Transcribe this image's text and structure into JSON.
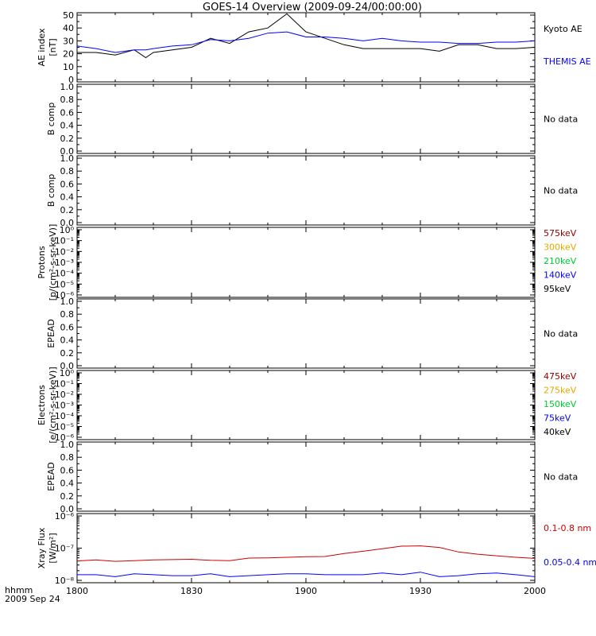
{
  "title": "GOES-14 Overview (2009-09-24/00:00:00)",
  "footer": {
    "time_label": "hhmm",
    "date_label": "2009 Sep 24"
  },
  "colors": {
    "black": "#000000",
    "blue": "#0000ff",
    "red": "#cc0000",
    "darkred": "#8b0000",
    "orange": "#e6a800",
    "green": "#00cc33"
  },
  "chart_data": [
    {
      "type": "line",
      "panel": "ae",
      "ylabel": [
        "AE index",
        "[nT]"
      ],
      "ylim": [
        0,
        50
      ],
      "yticks": [
        "0",
        "10",
        "20",
        "30",
        "40",
        "50"
      ],
      "minor_ticks": [
        5,
        15,
        25,
        35,
        45
      ],
      "x": [
        "1800",
        "1805",
        "1810",
        "1815",
        "1818",
        "1820",
        "1825",
        "1830",
        "1835",
        "1840",
        "1845",
        "1850",
        "1855",
        "1900",
        "1905",
        "1910",
        "1915",
        "1920",
        "1925",
        "1930",
        "1935",
        "1940",
        "1945",
        "1950",
        "1955",
        "2000"
      ],
      "series": [
        {
          "name": "Kyoto AE",
          "color": "#000000",
          "values": [
            21,
            21,
            19,
            23,
            17,
            21,
            23,
            25,
            32,
            28,
            37,
            40,
            51,
            37,
            32,
            27,
            24,
            24,
            24,
            24,
            22,
            27,
            27,
            24,
            24,
            25
          ]
        },
        {
          "name": "THEMIS AE",
          "color": "#0000ff",
          "values": [
            26,
            24,
            21,
            23,
            23,
            24,
            26,
            27,
            31,
            30,
            32,
            36,
            37,
            33,
            33,
            32,
            30,
            32,
            30,
            29,
            29,
            28,
            28,
            29,
            29,
            30
          ]
        }
      ]
    },
    {
      "type": "line",
      "panel": "bcomp1",
      "ylabel": [
        "B comp"
      ],
      "ylim": [
        0,
        1
      ],
      "yticks": [
        "0.0",
        "0.2",
        "0.4",
        "0.6",
        "0.8",
        "1.0"
      ],
      "minor_ticks": [
        0.1,
        0.3,
        0.5,
        0.7,
        0.9
      ],
      "status": "No data"
    },
    {
      "type": "line",
      "panel": "bcomp2",
      "ylabel": [
        "B comp"
      ],
      "ylim": [
        0,
        1
      ],
      "yticks": [
        "0.0",
        "0.2",
        "0.4",
        "0.6",
        "0.8",
        "1.0"
      ],
      "minor_ticks": [
        0.1,
        0.3,
        0.5,
        0.7,
        0.9
      ],
      "status": "No data"
    },
    {
      "type": "line",
      "panel": "protons",
      "ylabel": [
        "Protons",
        "[p/(cm²-s-sr-keV)]"
      ],
      "log": true,
      "yticks": [
        "10⁰",
        "10⁻¹",
        "10⁻²",
        "10⁻³",
        "10⁻⁴",
        "10⁻⁵",
        "10⁻⁶"
      ],
      "legend": [
        {
          "label": "575keV",
          "color": "#8b0000"
        },
        {
          "label": "300keV",
          "color": "#e6a800"
        },
        {
          "label": "210keV",
          "color": "#00cc33"
        },
        {
          "label": "140keV",
          "color": "#0000ff"
        },
        {
          "label": "95keV",
          "color": "#000000"
        }
      ]
    },
    {
      "type": "line",
      "panel": "epead1",
      "ylabel": [
        "EPEAD"
      ],
      "ylim": [
        0,
        1
      ],
      "yticks": [
        "0.0",
        "0.2",
        "0.4",
        "0.6",
        "0.8",
        "1.0"
      ],
      "minor_ticks": [
        0.1,
        0.3,
        0.5,
        0.7,
        0.9
      ],
      "status": "No data"
    },
    {
      "type": "line",
      "panel": "electrons",
      "ylabel": [
        "Electrons",
        "[e/(cm²-s-sr-keV)]"
      ],
      "log": true,
      "yticks": [
        "10⁰",
        "10⁻¹",
        "10⁻²",
        "10⁻³",
        "10⁻⁴",
        "10⁻⁵",
        "10⁻⁶"
      ],
      "legend": [
        {
          "label": "475keV",
          "color": "#8b0000"
        },
        {
          "label": "275keV",
          "color": "#e6a800"
        },
        {
          "label": "150keV",
          "color": "#00cc33"
        },
        {
          "label": "75keV",
          "color": "#0000ff"
        },
        {
          "label": "40keV",
          "color": "#000000"
        }
      ]
    },
    {
      "type": "line",
      "panel": "epead2",
      "ylabel": [
        "EPEAD"
      ],
      "ylim": [
        0,
        1
      ],
      "yticks": [
        "0.0",
        "0.2",
        "0.4",
        "0.6",
        "0.8",
        "1.0"
      ],
      "minor_ticks": [
        0.1,
        0.3,
        0.5,
        0.7,
        0.9
      ],
      "status": "No data"
    },
    {
      "type": "line",
      "panel": "xray",
      "ylabel": [
        "Xray Flux",
        "[W/m²]"
      ],
      "log": true,
      "ylim": [
        1e-08,
        1e-06
      ],
      "yticks": [
        "10⁻⁶",
        "10⁻⁷",
        "10⁻⁸"
      ],
      "xticks": [
        "1800",
        "1830",
        "1900",
        "1930",
        "2000"
      ],
      "x": [
        "1800",
        "1805",
        "1810",
        "1815",
        "1820",
        "1825",
        "1830",
        "1835",
        "1840",
        "1845",
        "1850",
        "1855",
        "1900",
        "1905",
        "1910",
        "1915",
        "1920",
        "1925",
        "1930",
        "1935",
        "1940",
        "1945",
        "1950",
        "1955",
        "2000"
      ],
      "series": [
        {
          "name": "0.1-0.8 nm",
          "color": "#cc0000",
          "values": [
            4e-08,
            4.3e-08,
            3.9e-08,
            4.1e-08,
            4.3e-08,
            4.4e-08,
            4.5e-08,
            4.2e-08,
            4.1e-08,
            4.9e-08,
            5e-08,
            5.2e-08,
            5.4e-08,
            5.5e-08,
            6.8e-08,
            8e-08,
            9.6e-08,
            1.15e-07,
            1.18e-07,
            1.05e-07,
            7.6e-08,
            6.5e-08,
            5.8e-08,
            5.2e-08,
            4.8e-08
          ]
        },
        {
          "name": "0.05-0.4 nm",
          "color": "#0000ff",
          "values": [
            1.5e-08,
            1.5e-08,
            1.3e-08,
            1.6e-08,
            1.5e-08,
            1.4e-08,
            1.4e-08,
            1.6e-08,
            1.3e-08,
            1.4e-08,
            1.5e-08,
            1.6e-08,
            1.6e-08,
            1.5e-08,
            1.5e-08,
            1.5e-08,
            1.7e-08,
            1.5e-08,
            1.8e-08,
            1.3e-08,
            1.4e-08,
            1.6e-08,
            1.7e-08,
            1.5e-08,
            1.3e-08
          ]
        }
      ]
    }
  ],
  "no_data_text": "No data"
}
